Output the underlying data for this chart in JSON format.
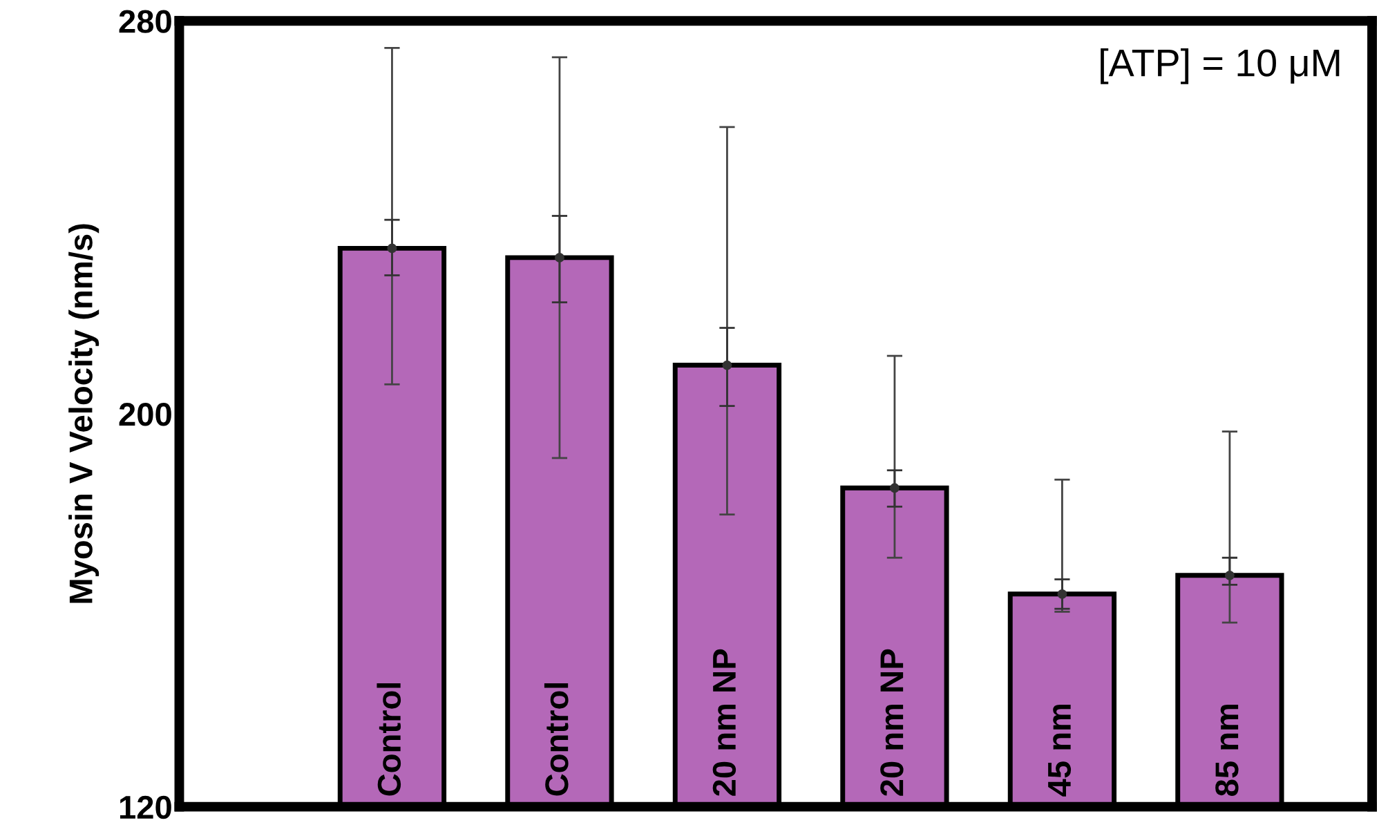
{
  "chart_data": {
    "type": "bar",
    "ylabel": "Myosin V Velocity (nm/s)",
    "annotations": [
      "[ATP] = 10 μM"
    ],
    "categories": [
      "Control",
      "Control",
      "20 nm NP",
      "20 nm NP",
      "45 nm",
      "85 nm"
    ],
    "series": [
      {
        "color": "#b468b8",
        "values": [
          233.7,
          231.8,
          209.9,
          184.9,
          163.3,
          167.1
        ],
        "errors": [
          [
            206,
            274.5
          ],
          [
            191,
            272.6
          ],
          [
            179.5,
            258.4
          ],
          [
            170.7,
            211.8
          ],
          [
            159.7,
            186.6
          ],
          [
            157.5,
            196.4
          ]
        ]
      },
      {
        "type": "scatter",
        "marker": "circle",
        "color": "#333333",
        "values": [
          233.7,
          231.8,
          209.9,
          184.9,
          163.3,
          167.1
        ],
        "errors": [
          [
            228.2,
            239.5
          ],
          [
            222.7,
            240.3
          ],
          [
            201.6,
            217.5
          ],
          [
            181.1,
            188.5
          ],
          [
            160.3,
            166.3
          ],
          [
            165.2,
            170.7
          ]
        ]
      }
    ],
    "ylim": [
      120,
      280
    ],
    "yticks": [
      120,
      200,
      280
    ],
    "grid": false
  }
}
